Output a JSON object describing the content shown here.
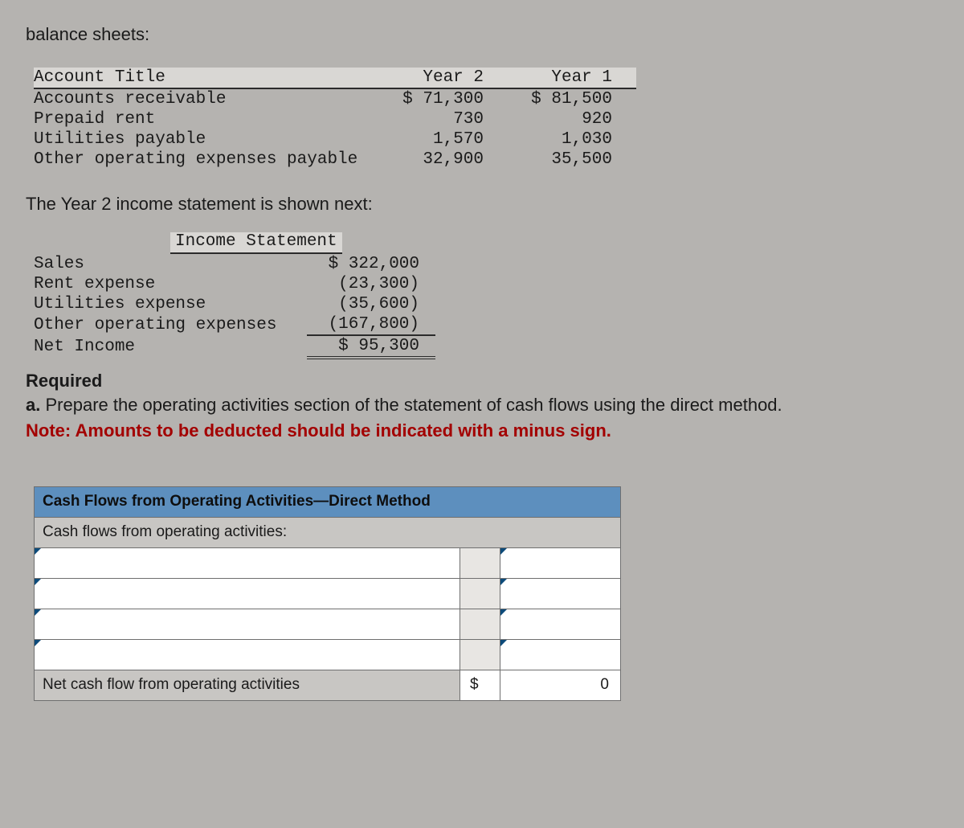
{
  "page_title": "balance sheets:",
  "balance_sheet": {
    "headers": {
      "col0": "Account Title",
      "col1": "Year 2",
      "col2": "Year 1"
    },
    "rows": [
      {
        "title": "Accounts receivable",
        "y2": "$ 71,300",
        "y1": "$ 81,500"
      },
      {
        "title": "Prepaid rent",
        "y2": "730",
        "y1": "920"
      },
      {
        "title": "Utilities payable",
        "y2": "1,570",
        "y1": "1,030"
      },
      {
        "title": "Other operating expenses payable",
        "y2": "32,900",
        "y1": "35,500"
      }
    ]
  },
  "subhead_text": "The Year 2 income statement is shown next:",
  "income_statement": {
    "header": "Income Statement",
    "rows": [
      {
        "label": "Sales",
        "val": "$ 322,000"
      },
      {
        "label": "Rent expense",
        "val": "(23,300)"
      },
      {
        "label": "Utilities expense",
        "val": "(35,600)"
      },
      {
        "label": "Other operating expenses",
        "val": "(167,800)"
      }
    ],
    "net_label": "Net Income",
    "net_val": "$ 95,300"
  },
  "required": {
    "title": "Required",
    "item_letter": "a.",
    "item_text": "Prepare the operating activities section of the statement of cash flows using the direct method.",
    "note": "Note: Amounts to be deducted should be indicated with a minus sign."
  },
  "answer_grid": {
    "header": "Cash Flows from Operating Activities—Direct Method",
    "subheader": "Cash flows from operating activities:",
    "blank_rows": 4,
    "total_label": "Net cash flow from operating activities",
    "total_sym": "$",
    "total_val": "0"
  },
  "colors": {
    "page_bg": "#b5b3b0",
    "header_blue": "#5d8fbe",
    "cell_grey": "#c8c6c3",
    "note_red": "#a30000",
    "rule": "#2b2b2b",
    "tri": "#0d4b7a"
  }
}
